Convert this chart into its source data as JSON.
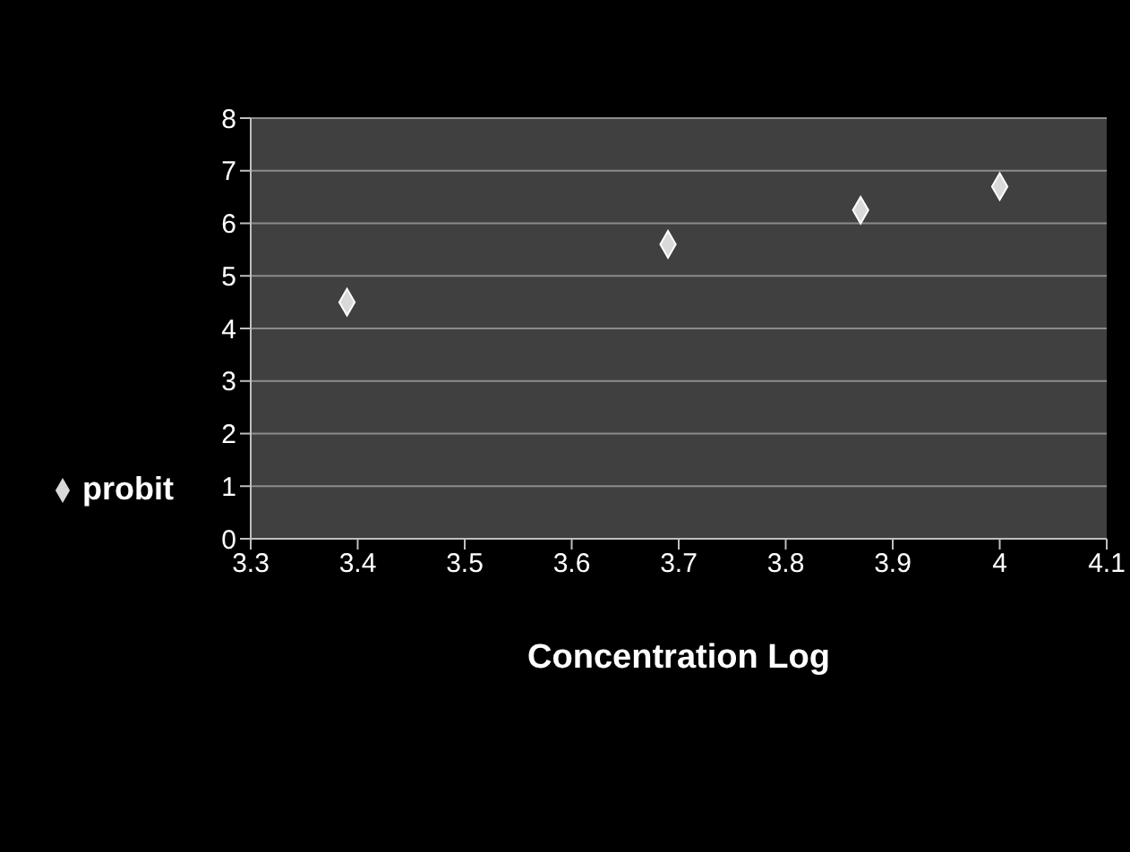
{
  "chart_data": {
    "type": "scatter",
    "xlabel": "Concentration Log",
    "x": [
      3.39,
      3.69,
      3.87,
      4.0
    ],
    "series": [
      {
        "name": "probit",
        "color": "#d9d9d9",
        "values": [
          4.5,
          5.6,
          6.25,
          6.7
        ]
      }
    ],
    "xlim": [
      3.3,
      4.1
    ],
    "xticks": [
      3.3,
      3.4,
      3.5,
      3.6,
      3.7,
      3.8,
      3.9,
      4,
      4.1
    ],
    "ylim": [
      0,
      8
    ],
    "yticks": [
      0,
      1,
      2,
      3,
      4,
      5,
      6,
      7,
      8
    ],
    "grid": "y",
    "legend": "left",
    "marker": "diamond"
  }
}
